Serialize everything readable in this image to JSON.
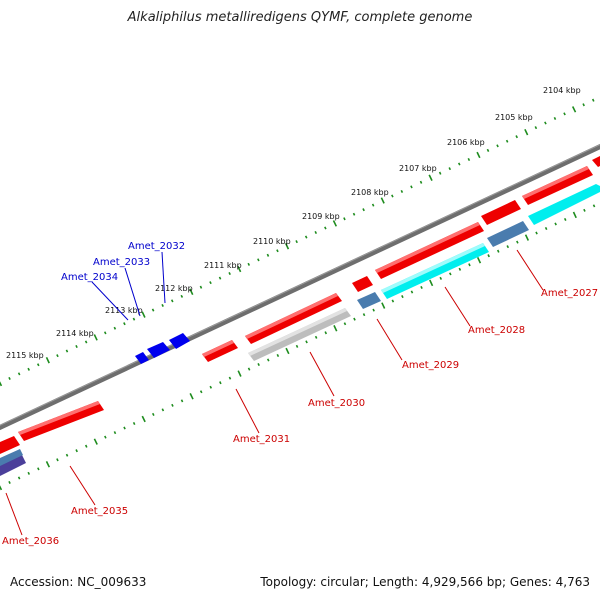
{
  "title": "Alkaliphilus metalliredigens QYMF, complete genome",
  "footer": {
    "accession": "Accession: NC_009633",
    "topology": "Topology: circular; Length: 4,929,566 bp; Genes: 4,763"
  },
  "colors": {
    "backbone": "#6e6e6e",
    "ruler_tick": "#1e8c1e",
    "gene_red": "#ee0000",
    "gene_cyan": "#00eeee",
    "gene_steel": "#4a7cae",
    "gene_grey": "#bdbdbd",
    "gene_blue": "#0000ee",
    "gene_purple": "#4b3f9a",
    "label_red": "#cc0000",
    "label_blue": "#0000cc"
  },
  "ruler": {
    "unit": "kbp",
    "positions": [
      2104,
      2105,
      2106,
      2107,
      2108,
      2109,
      2110,
      2111,
      2112,
      2113,
      2114,
      2115
    ],
    "labels": [
      "2104 kbp",
      "2105 kbp",
      "2106 kbp",
      "2107 kbp",
      "2108 kbp",
      "2109 kbp",
      "2110 kbp",
      "2111 kbp",
      "2112 kbp",
      "2113 kbp",
      "2114 kbp",
      "2115 kbp"
    ]
  },
  "genes": [
    {
      "name": "Amet_2027",
      "color": "red"
    },
    {
      "name": "Amet_2028",
      "color": "cyan"
    },
    {
      "name": "Amet_2029",
      "color": "steel"
    },
    {
      "name": "Amet_2030",
      "color": "grey"
    },
    {
      "name": "Amet_2031",
      "color": "red"
    },
    {
      "name": "Amet_2032",
      "color": "blue"
    },
    {
      "name": "Amet_2033",
      "color": "blue"
    },
    {
      "name": "Amet_2034",
      "color": "blue"
    },
    {
      "name": "Amet_2035",
      "color": "red"
    },
    {
      "name": "Amet_2036",
      "color": "purple"
    }
  ]
}
